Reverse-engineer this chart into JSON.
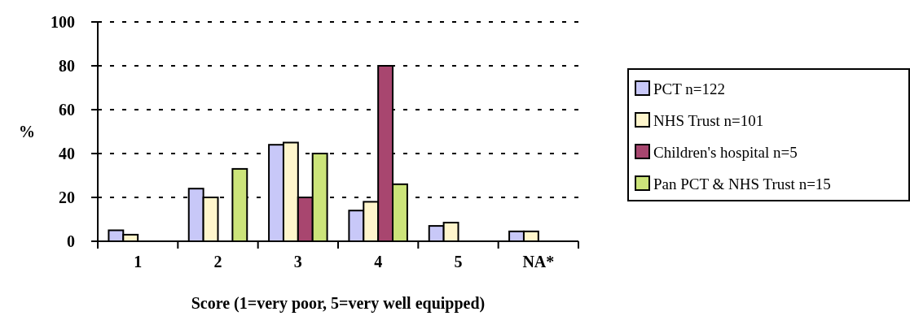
{
  "chart_data": {
    "type": "bar",
    "categories": [
      "1",
      "2",
      "3",
      "4",
      "5",
      "NA*"
    ],
    "xlabel": "Score (1=very poor, 5=very well equipped)",
    "ylabel": "%",
    "ylim": [
      0,
      100
    ],
    "yticks": [
      0,
      20,
      40,
      60,
      80,
      100
    ],
    "grid": "y",
    "legend": "right",
    "series": [
      {
        "name": "PCT n=122",
        "color": "#c8c8f8",
        "values": [
          5,
          24,
          44,
          14,
          7,
          4.5
        ]
      },
      {
        "name": "NHS Trust n=101",
        "color": "#fff6cc",
        "values": [
          3,
          20,
          45,
          18,
          8.5,
          4.5
        ]
      },
      {
        "name": "Children's hospital n=5",
        "color": "#a8466f",
        "values": [
          null,
          null,
          20,
          80,
          null,
          null
        ]
      },
      {
        "name": "Pan PCT & NHS Trust n=15",
        "color": "#cce47a",
        "values": [
          null,
          33,
          40,
          26,
          null,
          null
        ]
      }
    ]
  }
}
